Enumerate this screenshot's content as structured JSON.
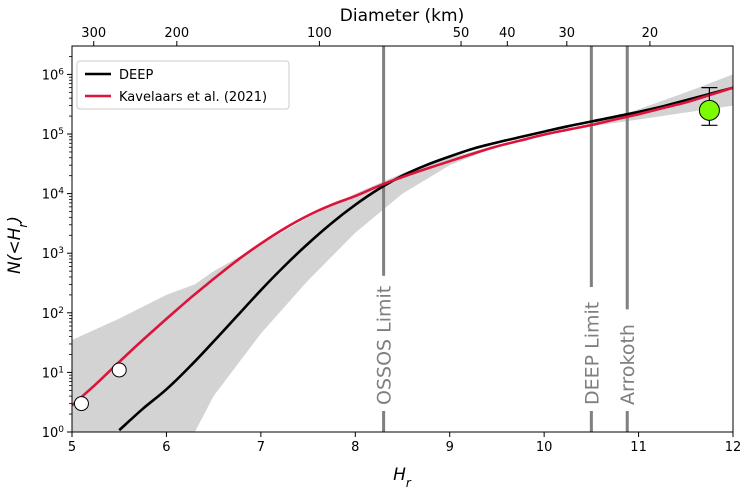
{
  "chart_data": {
    "type": "line",
    "xlabel": "H_r",
    "ylabel": "N(<H_r)",
    "top_xlabel": "Diameter (km)",
    "xlim": [
      5,
      12
    ],
    "ylim": [
      1,
      3000000
    ],
    "yscale": "log",
    "x_ticks": [
      "5",
      "6",
      "7",
      "8",
      "9",
      "10",
      "11",
      "12"
    ],
    "y_ticks": [
      {
        "base": "10",
        "exp": "0"
      },
      {
        "base": "10",
        "exp": "1"
      },
      {
        "base": "10",
        "exp": "2"
      },
      {
        "base": "10",
        "exp": "3"
      },
      {
        "base": "10",
        "exp": "4"
      },
      {
        "base": "10",
        "exp": "5"
      },
      {
        "base": "10",
        "exp": "6"
      }
    ],
    "top_ticks": [
      {
        "label": "300",
        "H": 5.23
      },
      {
        "label": "200",
        "H": 6.11
      },
      {
        "label": "100",
        "H": 7.62
      },
      {
        "label": "50",
        "H": 9.12
      },
      {
        "label": "40",
        "H": 9.61
      },
      {
        "label": "30",
        "H": 10.24
      },
      {
        "label": "20",
        "H": 11.12
      }
    ],
    "legend": {
      "position": "upper-left",
      "entries": [
        "DEEP",
        "Kavelaars et al. (2021)"
      ]
    },
    "series": [
      {
        "name": "DEEP",
        "color": "#000000",
        "x": [
          5.5,
          5.75,
          6.0,
          6.25,
          6.5,
          6.75,
          7.0,
          7.25,
          7.5,
          7.75,
          8.0,
          8.25,
          8.5,
          8.75,
          9.0,
          9.25,
          9.5,
          9.75,
          10.0,
          10.25,
          10.5,
          10.75,
          11.0,
          11.25,
          11.5,
          11.75,
          12.0
        ],
        "y": [
          1.07,
          2.45,
          5.2,
          12.6,
          33,
          89,
          240,
          610,
          1450,
          3200,
          6500,
          12000,
          20000,
          30000,
          42000,
          57000,
          72000,
          89000,
          110000,
          135000,
          162000,
          195000,
          235000,
          290000,
          370000,
          470000,
          600000
        ]
      },
      {
        "name": "Kavelaars et al. (2021)",
        "color": "#dc143c",
        "x": [
          5.0,
          5.25,
          5.5,
          5.75,
          6.0,
          6.25,
          6.5,
          6.75,
          7.0,
          7.25,
          7.5,
          7.75,
          8.0,
          8.25,
          8.5,
          8.75,
          9.0,
          9.25,
          9.5,
          9.75,
          10.0,
          10.25,
          10.5,
          10.75,
          11.0,
          11.25,
          11.5,
          11.75,
          12.0
        ],
        "y": [
          2.8,
          6.3,
          15,
          35,
          79,
          175,
          370,
          760,
          1450,
          2600,
          4300,
          6500,
          9100,
          13500,
          19000,
          26000,
          35000,
          47000,
          62000,
          78000,
          98000,
          118000,
          142000,
          175000,
          215000,
          270000,
          340000,
          450000,
          600000
        ]
      }
    ],
    "uncertainty_band": {
      "color": "#d3d3d3",
      "x": [
        5.0,
        5.5,
        6.0,
        6.3,
        6.5,
        7.0,
        7.5,
        8.0,
        8.5,
        9.0,
        9.5,
        10.0,
        10.5,
        11.0,
        11.5,
        12.0
      ],
      "upper": [
        35,
        80,
        200,
        300,
        500,
        1400,
        4000,
        10000,
        22000,
        40000,
        65000,
        100000,
        150000,
        260000,
        500000,
        1000000
      ],
      "lower": [
        1,
        1,
        1,
        1,
        4,
        45,
        350,
        2200,
        10000,
        30000,
        62000,
        100000,
        135000,
        175000,
        230000,
        300000
      ]
    },
    "points": [
      {
        "H": 5.1,
        "N": 3,
        "fill": "#ffffff"
      },
      {
        "H": 5.5,
        "N": 11,
        "fill": "#ffffff"
      }
    ],
    "highlight_point": {
      "H": 11.75,
      "N": 250000,
      "err_low": 140000,
      "err_high": 600000,
      "fill": "#7cfc00"
    },
    "vertical_lines": [
      {
        "H": 8.3,
        "label": "OSSOS Limit"
      },
      {
        "H": 10.5,
        "label": "DEEP Limit"
      },
      {
        "H": 10.88,
        "label": "Arrokoth"
      }
    ]
  }
}
